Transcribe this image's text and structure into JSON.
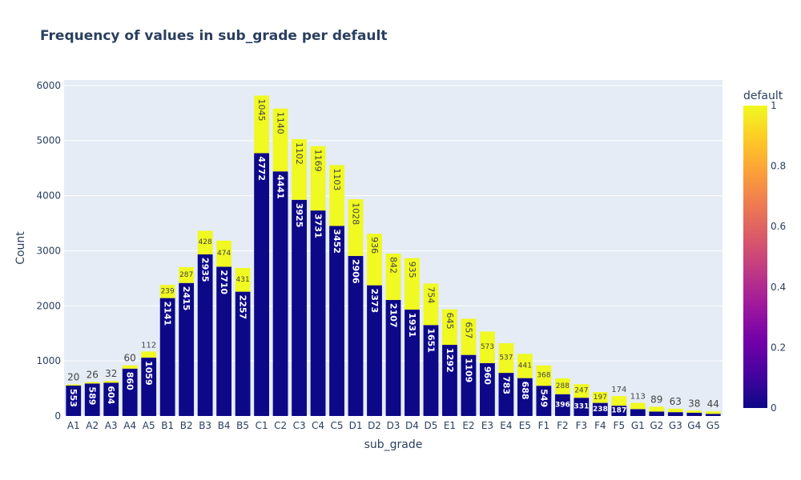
{
  "chart_data": {
    "type": "bar",
    "barmode": "stack",
    "title": "Frequency of values in sub_grade per default",
    "xlabel": "sub_grade",
    "ylabel": "Count",
    "ylim": [
      0,
      6100
    ],
    "yticks": [
      0,
      1000,
      2000,
      3000,
      4000,
      5000,
      6000
    ],
    "grid": true,
    "categories": [
      "A1",
      "A2",
      "A3",
      "A4",
      "A5",
      "B1",
      "B2",
      "B3",
      "B4",
      "B5",
      "C1",
      "C2",
      "C3",
      "C4",
      "C5",
      "D1",
      "D2",
      "D3",
      "D4",
      "D5",
      "E1",
      "E2",
      "E3",
      "E4",
      "E5",
      "F1",
      "F2",
      "F3",
      "F4",
      "F5",
      "G1",
      "G2",
      "G3",
      "G4",
      "G5"
    ],
    "series": [
      {
        "name": "0",
        "color": "#0d0887",
        "values": [
          553,
          589,
          604,
          860,
          1059,
          2141,
          2415,
          2935,
          2710,
          2257,
          4772,
          4441,
          3925,
          3731,
          3452,
          2906,
          2373,
          2107,
          1931,
          1651,
          1292,
          1109,
          960,
          783,
          688,
          549,
          396,
          331,
          238,
          187,
          125,
          80,
          70,
          60,
          40
        ]
      },
      {
        "name": "1",
        "color": "#f0f921",
        "values": [
          20,
          26,
          32,
          60,
          112,
          239,
          287,
          428,
          474,
          431,
          1045,
          1140,
          1102,
          1169,
          1103,
          1028,
          936,
          842,
          935,
          754,
          645,
          657,
          573,
          537,
          441,
          368,
          288,
          247,
          197,
          174,
          113,
          89,
          63,
          38,
          44
        ]
      }
    ],
    "bar0_labels": [
      "553",
      "589",
      "604",
      "860",
      "1059",
      "2141",
      "2415",
      "2935",
      "2710",
      "2257",
      "4772",
      "4441",
      "3925",
      "3731",
      "3452",
      "2906",
      "2373",
      "2107",
      "1931",
      "1651",
      "1292",
      "1109",
      "960",
      "783",
      "688",
      "549",
      "396",
      "331",
      "238",
      "187",
      "",
      "",
      "",
      "",
      ""
    ],
    "colorbar": {
      "title": "default",
      "ticks": [
        "0",
        "0.2",
        "0.4",
        "0.6",
        "0.8",
        "1"
      ],
      "range": [
        0,
        1
      ],
      "colors": [
        "#0d0887",
        "#46039f",
        "#7201a8",
        "#9c179e",
        "#bd3786",
        "#d8576b",
        "#ed7953",
        "#fb9f3a",
        "#fdca26",
        "#f0f921"
      ]
    }
  }
}
